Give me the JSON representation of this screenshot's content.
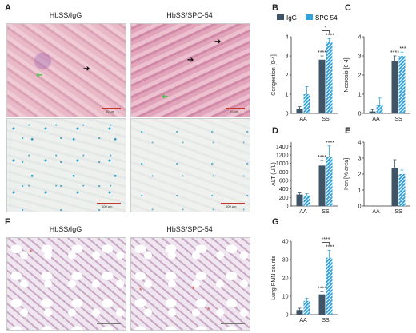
{
  "panels": {
    "A": "A",
    "B": "B",
    "C": "C",
    "D": "D",
    "E": "E",
    "F": "F",
    "G": "G"
  },
  "images": {
    "left_title": "HbSS/IgG",
    "right_title": "HbSS/SPC-54",
    "scale_20": "20 µm",
    "scale_100": "100 µm"
  },
  "colors": {
    "igg": "#3f5567",
    "spc54": "#34a3dc",
    "arrow_black": "#000000",
    "arrow_green": "#3fbf3f",
    "asterisk": "#d9402b"
  },
  "legend": {
    "igg": "IgG",
    "spc54": "SPC 54"
  },
  "chart_data": [
    {
      "id": "B",
      "type": "bar",
      "categories": [
        "AA",
        "SS"
      ],
      "ylabel": "Congestion [0-4]",
      "ylim": [
        0,
        4
      ],
      "yticks": [
        0,
        1,
        2,
        3,
        4
      ],
      "series": [
        {
          "name": "IgG",
          "values": [
            0.25,
            2.8
          ]
        },
        {
          "name": "SPC 54",
          "values": [
            1.0,
            3.75
          ]
        }
      ],
      "errors": [
        [
          0.1,
          0.2
        ],
        [
          0.4,
          0.15
        ]
      ],
      "sig": [
        "****",
        "****",
        "*"
      ]
    },
    {
      "id": "C",
      "type": "bar",
      "categories": [
        "AA",
        "SS"
      ],
      "ylabel": "Necrosis [0-4]",
      "ylim": [
        0,
        4
      ],
      "yticks": [
        0,
        1,
        2,
        3,
        4
      ],
      "series": [
        {
          "name": "IgG",
          "values": [
            0.1,
            2.75
          ]
        },
        {
          "name": "SPC 54",
          "values": [
            0.45,
            3.0
          ]
        }
      ],
      "errors": [
        [
          0.1,
          0.25
        ],
        [
          0.35,
          0.2
        ]
      ],
      "sig": [
        "****",
        "***"
      ]
    },
    {
      "id": "D",
      "type": "bar",
      "categories": [
        "AA",
        "SS"
      ],
      "ylabel": "ALT (U/L)",
      "ylim": [
        0,
        1500
      ],
      "yticks": [
        0,
        200,
        400,
        600,
        800,
        1000,
        1200,
        1400
      ],
      "series": [
        {
          "name": "IgG",
          "values": [
            270,
            950
          ]
        },
        {
          "name": "SPC 54",
          "values": [
            250,
            1150
          ]
        }
      ],
      "errors": [
        [
          40,
          120
        ],
        [
          40,
          260
        ]
      ],
      "sig": [
        "****",
        "****"
      ]
    },
    {
      "id": "E",
      "type": "bar",
      "categories": [
        "AA",
        "SS"
      ],
      "ylabel": "Iron [% area]",
      "ylim": [
        0,
        4
      ],
      "yticks": [
        0,
        1,
        2,
        3,
        4
      ],
      "series": [
        {
          "name": "IgG",
          "values": [
            0,
            2.4
          ]
        },
        {
          "name": "SPC 54",
          "values": [
            0,
            2.0
          ]
        }
      ],
      "errors": [
        [
          0,
          0.5
        ],
        [
          0,
          0.25
        ]
      ],
      "sig": []
    },
    {
      "id": "G",
      "type": "bar",
      "categories": [
        "AA",
        "SS"
      ],
      "ylabel": "Lung PMN counts",
      "ylim": [
        0,
        40
      ],
      "yticks": [
        0,
        10,
        20,
        30,
        40
      ],
      "series": [
        {
          "name": "IgG",
          "values": [
            2.5,
            11
          ]
        },
        {
          "name": "SPC 54",
          "values": [
            7.5,
            31
          ]
        }
      ],
      "errors": [
        [
          1,
          1.5
        ],
        [
          1.5,
          4
        ]
      ],
      "sig": [
        "****",
        "****",
        "****"
      ]
    }
  ]
}
